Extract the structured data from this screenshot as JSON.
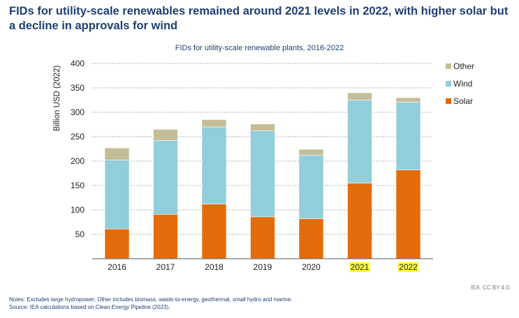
{
  "headline": "FIDs for utility-scale renewables remained around 2021 levels in 2022, with higher solar but a decline in approvals for wind",
  "credit": "IEA. CC BY 4.0.",
  "notes": "Notes: Excludes large hydropower; Other includes biomass, waste-to-energy, geothermal, small hydro and marine.",
  "source": "Source: IEA calculations based on Clean Energy Pipeline (2023).",
  "chart_data": {
    "type": "bar",
    "stacked": true,
    "title": "FIDs for utility-scale renewable plants, 2016-2022",
    "xlabel": "",
    "ylabel": "Billion USD (2022)",
    "ylim": [
      0,
      400
    ],
    "yticks": [
      50,
      100,
      150,
      200,
      250,
      300,
      350,
      400
    ],
    "grid": true,
    "legend_position": "right",
    "categories": [
      "2016",
      "2017",
      "2018",
      "2019",
      "2020",
      "2021",
      "2022"
    ],
    "highlighted_categories": [
      "2021",
      "2022"
    ],
    "highlight_color": "#ffff33",
    "series": [
      {
        "name": "Solar",
        "color": "#e36c0a",
        "values": [
          61,
          91,
          112,
          86,
          82,
          155,
          182
        ]
      },
      {
        "name": "Wind",
        "color": "#92cddc",
        "values": [
          141,
          151,
          158,
          176,
          130,
          170,
          139
        ]
      },
      {
        "name": "Other",
        "color": "#c4bd97",
        "values": [
          25,
          23,
          15,
          14,
          12,
          15,
          9
        ]
      }
    ],
    "legend_order": [
      "Other",
      "Wind",
      "Solar"
    ]
  }
}
